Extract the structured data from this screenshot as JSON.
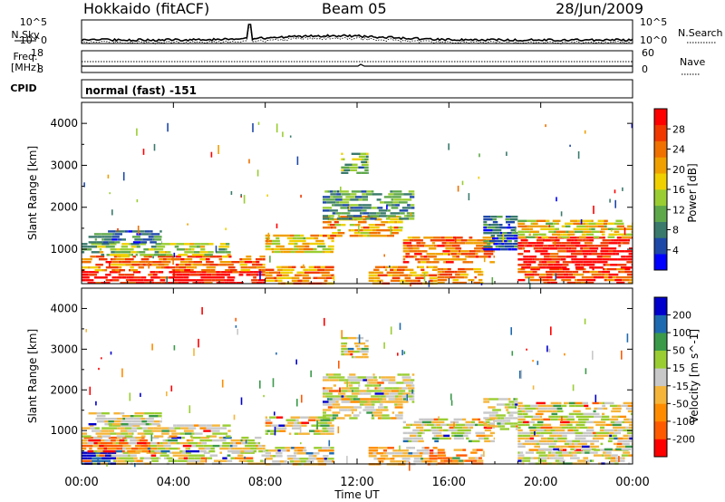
{
  "header": {
    "station": "Hokkaido (fitACF)",
    "beam": "Beam 05",
    "date": "28/Jun/2009"
  },
  "noise_panel": {
    "left_label": "N.Sky",
    "right_label": "N.Search",
    "left_ticks": [
      "10^5",
      "10^0"
    ],
    "right_ticks": [
      "10^5",
      "10^0"
    ]
  },
  "freq_panel": {
    "left_label_1": "Freq.",
    "left_label_2": "[MHz]",
    "left_ticks": [
      "18",
      "8"
    ],
    "right_label": "Nave",
    "right_ticks": [
      "60",
      "0"
    ]
  },
  "cpid_panel": {
    "label": "CPID",
    "value": "normal (fast) -151"
  },
  "time_axis": {
    "label": "Time UT",
    "ticks": [
      "00:00",
      "04:00",
      "08:00",
      "12:00",
      "16:00",
      "20:00",
      "00:00"
    ]
  },
  "chart_data": [
    {
      "type": "heatmap",
      "name": "power",
      "ylabel": "Slant Range [km]",
      "yticks": [
        "1000",
        "2000",
        "3000",
        "4000"
      ],
      "ylim": [
        180,
        4500
      ],
      "xlim_hours": [
        0,
        24
      ],
      "colorbar_label": "Power [dB]",
      "colorbar_ticks": [
        "28",
        "24",
        "20",
        "16",
        "12",
        "8",
        "4"
      ],
      "colors": [
        "#0000ff",
        "#1e48a8",
        "#3a7a6c",
        "#5ea84a",
        "#9acd32",
        "#f0d000",
        "#f0a000",
        "#f07000",
        "#f03800",
        "#ff0000"
      ],
      "regions": [
        {
          "t": [
            0.0,
            8.0
          ],
          "r": [
            180,
            480
          ],
          "level": 0.95
        },
        {
          "t": [
            0.0,
            8.0
          ],
          "r": [
            480,
            850
          ],
          "level": 0.75
        },
        {
          "t": [
            0.0,
            6.5
          ],
          "r": [
            850,
            1150
          ],
          "level": 0.45
        },
        {
          "t": [
            0.3,
            3.5
          ],
          "r": [
            1150,
            1450
          ],
          "level": 0.2
        },
        {
          "t": [
            8.0,
            11.0
          ],
          "r": [
            180,
            600
          ],
          "level": 0.7
        },
        {
          "t": [
            8.0,
            11.0
          ],
          "r": [
            900,
            1350
          ],
          "level": 0.55
        },
        {
          "t": [
            10.5,
            14.0
          ],
          "r": [
            1300,
            1800
          ],
          "level": 0.65
        },
        {
          "t": [
            10.5,
            14.5
          ],
          "r": [
            1700,
            2400
          ],
          "level": 0.3
        },
        {
          "t": [
            11.3,
            12.5
          ],
          "r": [
            2800,
            3300
          ],
          "level": 0.35
        },
        {
          "t": [
            12.5,
            15.5
          ],
          "r": [
            180,
            600
          ],
          "level": 0.7
        },
        {
          "t": [
            14.0,
            18.0
          ],
          "r": [
            700,
            1300
          ],
          "level": 0.75
        },
        {
          "t": [
            15.5,
            17.5
          ],
          "r": [
            180,
            550
          ],
          "level": 0.7
        },
        {
          "t": [
            17.5,
            19.0
          ],
          "r": [
            1000,
            1800
          ],
          "level": 0.2
        },
        {
          "t": [
            19.0,
            24.0
          ],
          "r": [
            180,
            550
          ],
          "level": 0.8
        },
        {
          "t": [
            19.0,
            24.0
          ],
          "r": [
            550,
            1300
          ],
          "level": 0.95
        },
        {
          "t": [
            19.0,
            24.0
          ],
          "r": [
            1300,
            1700
          ],
          "level": 0.55
        }
      ]
    },
    {
      "type": "heatmap",
      "name": "velocity",
      "ylabel": "Slant Range [km]",
      "yticks": [
        "1000",
        "2000",
        "3000",
        "4000"
      ],
      "ylim": [
        180,
        4500
      ],
      "xlim_hours": [
        0,
        24
      ],
      "colorbar_label": "Velocity [m s^-1]",
      "colorbar_ticks": [
        "200",
        "100",
        "50",
        "15",
        "-15",
        "-50",
        "-100",
        "-200"
      ],
      "colors": [
        "#ff0000",
        "#ff5a00",
        "#ff8c00",
        "#f5b53a",
        "#c8c8c8",
        "#9acd32",
        "#3a9a4a",
        "#1e6ab0",
        "#0000cc"
      ],
      "regions": [
        {
          "t": [
            0.0,
            8.0
          ],
          "r": [
            180,
            480
          ],
          "level": 0.5
        },
        {
          "t": [
            0.0,
            1.5
          ],
          "r": [
            180,
            480
          ],
          "level": 0.95
        },
        {
          "t": [
            0.0,
            8.0
          ],
          "r": [
            480,
            850
          ],
          "level": 0.5
        },
        {
          "t": [
            0.0,
            3.0
          ],
          "r": [
            480,
            850
          ],
          "level": 0.2
        },
        {
          "t": [
            0.0,
            6.5
          ],
          "r": [
            850,
            1150
          ],
          "level": 0.5
        },
        {
          "t": [
            0.3,
            3.5
          ],
          "r": [
            1150,
            1450
          ],
          "level": 0.55
        },
        {
          "t": [
            8.0,
            11.0
          ],
          "r": [
            180,
            600
          ],
          "level": 0.45
        },
        {
          "t": [
            8.0,
            11.0
          ],
          "r": [
            900,
            1350
          ],
          "level": 0.5
        },
        {
          "t": [
            10.5,
            14.0
          ],
          "r": [
            1300,
            1800
          ],
          "level": 0.5
        },
        {
          "t": [
            10.5,
            14.5
          ],
          "r": [
            1700,
            2400
          ],
          "level": 0.5
        },
        {
          "t": [
            11.3,
            12.5
          ],
          "r": [
            2800,
            3300
          ],
          "level": 0.5
        },
        {
          "t": [
            12.5,
            15.5
          ],
          "r": [
            180,
            600
          ],
          "level": 0.35
        },
        {
          "t": [
            14.0,
            18.0
          ],
          "r": [
            700,
            1300
          ],
          "level": 0.5
        },
        {
          "t": [
            15.5,
            17.5
          ],
          "r": [
            180,
            550
          ],
          "level": 0.3
        },
        {
          "t": [
            17.5,
            19.0
          ],
          "r": [
            1000,
            1800
          ],
          "level": 0.55
        },
        {
          "t": [
            19.0,
            24.0
          ],
          "r": [
            180,
            550
          ],
          "level": 0.5
        },
        {
          "t": [
            19.0,
            24.0
          ],
          "r": [
            550,
            1300
          ],
          "level": 0.5
        },
        {
          "t": [
            19.0,
            24.0
          ],
          "r": [
            1300,
            1700
          ],
          "level": 0.5
        }
      ]
    }
  ]
}
